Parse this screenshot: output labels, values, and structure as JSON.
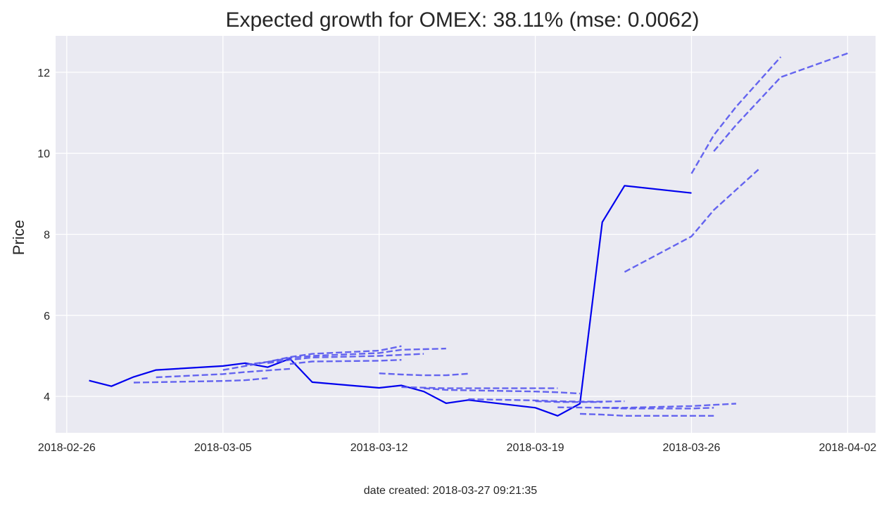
{
  "chart_data": {
    "type": "line",
    "title": "Expected growth for OMEX: 38.11% (mse: 0.0062)",
    "xlabel": "",
    "ylabel": "Price",
    "footer": "date created: 2018-03-27 09:21:35",
    "xlim": [
      "2018-02-25T12:00",
      "2018-04-03T06:00"
    ],
    "ylim": [
      3.1,
      12.9
    ],
    "x_ticks": [
      "2018-02-26",
      "2018-03-05",
      "2018-03-12",
      "2018-03-19",
      "2018-03-26",
      "2018-04-02"
    ],
    "y_ticks": [
      4,
      6,
      8,
      10,
      12
    ],
    "grid": true,
    "background": "#eaeaf2",
    "grid_color": "#ffffff",
    "series": [
      {
        "style": "solid",
        "color": "#0000ee",
        "points": [
          [
            "2018-02-27",
            4.39
          ],
          [
            "2018-02-28",
            4.25
          ],
          [
            "2018-03-01",
            4.48
          ],
          [
            "2018-03-02",
            4.65
          ],
          [
            "2018-03-05",
            4.75
          ],
          [
            "2018-03-06",
            4.82
          ],
          [
            "2018-03-07",
            4.72
          ],
          [
            "2018-03-08",
            4.93
          ],
          [
            "2018-03-09",
            4.35
          ],
          [
            "2018-03-12",
            4.21
          ],
          [
            "2018-03-13",
            4.27
          ],
          [
            "2018-03-14",
            4.12
          ],
          [
            "2018-03-15",
            3.83
          ],
          [
            "2018-03-16",
            3.91
          ],
          [
            "2018-03-19",
            3.72
          ],
          [
            "2018-03-20",
            3.52
          ],
          [
            "2018-03-21",
            3.82
          ],
          [
            "2018-03-22",
            8.3
          ],
          [
            "2018-03-23",
            9.2
          ],
          [
            "2018-03-26",
            9.02
          ]
        ]
      },
      {
        "style": "dashed",
        "color": "#5555ee",
        "points": [
          [
            "2018-03-01",
            4.34
          ],
          [
            "2018-03-05",
            4.38
          ],
          [
            "2018-03-06",
            4.4
          ],
          [
            "2018-03-07",
            4.45
          ]
        ]
      },
      {
        "style": "dashed",
        "color": "#5555ee",
        "points": [
          [
            "2018-03-02",
            4.47
          ],
          [
            "2018-03-05",
            4.55
          ],
          [
            "2018-03-06",
            4.6
          ],
          [
            "2018-03-08",
            4.68
          ]
        ]
      },
      {
        "style": "dashed",
        "color": "#5555ee",
        "points": [
          [
            "2018-03-05",
            4.65
          ],
          [
            "2018-03-06",
            4.75
          ],
          [
            "2018-03-08",
            4.95
          ],
          [
            "2018-03-09",
            5.0
          ],
          [
            "2018-03-12",
            5.07
          ],
          [
            "2018-03-13",
            5.15
          ],
          [
            "2018-03-15",
            5.18
          ]
        ]
      },
      {
        "style": "dashed",
        "color": "#5555ee",
        "points": [
          [
            "2018-03-06",
            4.78
          ],
          [
            "2018-03-07",
            4.85
          ],
          [
            "2018-03-08",
            4.97
          ],
          [
            "2018-03-09",
            5.05
          ],
          [
            "2018-03-12",
            5.13
          ],
          [
            "2018-03-13",
            5.24
          ]
        ]
      },
      {
        "style": "dashed",
        "color": "#5555ee",
        "points": [
          [
            "2018-03-07",
            4.82
          ],
          [
            "2018-03-08",
            4.9
          ],
          [
            "2018-03-09",
            4.96
          ],
          [
            "2018-03-12",
            5.0
          ],
          [
            "2018-03-14",
            5.05
          ]
        ]
      },
      {
        "style": "dashed",
        "color": "#5555ee",
        "points": [
          [
            "2018-03-08",
            4.8
          ],
          [
            "2018-03-09",
            4.86
          ],
          [
            "2018-03-12",
            4.88
          ],
          [
            "2018-03-13",
            4.9
          ]
        ]
      },
      {
        "style": "dashed",
        "color": "#5555ee",
        "points": [
          [
            "2018-03-12",
            4.57
          ],
          [
            "2018-03-13",
            4.54
          ],
          [
            "2018-03-14",
            4.52
          ],
          [
            "2018-03-15",
            4.52
          ],
          [
            "2018-03-16",
            4.56
          ]
        ]
      },
      {
        "style": "dashed",
        "color": "#5555ee",
        "points": [
          [
            "2018-03-13",
            4.23
          ],
          [
            "2018-03-15",
            4.2
          ],
          [
            "2018-03-16",
            4.2
          ],
          [
            "2018-03-19",
            4.2
          ],
          [
            "2018-03-20",
            4.2
          ]
        ]
      },
      {
        "style": "dashed",
        "color": "#5555ee",
        "points": [
          [
            "2018-03-14",
            4.2
          ],
          [
            "2018-03-15",
            4.16
          ],
          [
            "2018-03-16",
            4.15
          ],
          [
            "2018-03-19",
            4.12
          ],
          [
            "2018-03-20",
            4.1
          ],
          [
            "2018-03-21",
            4.07
          ]
        ]
      },
      {
        "style": "dashed",
        "color": "#5555ee",
        "points": [
          [
            "2018-03-16",
            3.93
          ],
          [
            "2018-03-19",
            3.9
          ],
          [
            "2018-03-20",
            3.88
          ],
          [
            "2018-03-21",
            3.87
          ],
          [
            "2018-03-22",
            3.87
          ],
          [
            "2018-03-23",
            3.88
          ]
        ]
      },
      {
        "style": "dashed",
        "color": "#5555ee",
        "points": [
          [
            "2018-03-19",
            3.88
          ],
          [
            "2018-03-20",
            3.86
          ],
          [
            "2018-03-21",
            3.86
          ],
          [
            "2018-03-22",
            3.86
          ]
        ]
      },
      {
        "style": "dashed",
        "color": "#5555ee",
        "points": [
          [
            "2018-03-20",
            3.73
          ],
          [
            "2018-03-22",
            3.72
          ],
          [
            "2018-03-23",
            3.72
          ],
          [
            "2018-03-26",
            3.76
          ],
          [
            "2018-03-28",
            3.82
          ]
        ]
      },
      {
        "style": "dashed",
        "color": "#5555ee",
        "points": [
          [
            "2018-03-22",
            3.72
          ],
          [
            "2018-03-23",
            3.7
          ],
          [
            "2018-03-26",
            3.7
          ],
          [
            "2018-03-27",
            3.72
          ]
        ]
      },
      {
        "style": "dashed",
        "color": "#5555ee",
        "points": [
          [
            "2018-03-21",
            3.57
          ],
          [
            "2018-03-22",
            3.55
          ],
          [
            "2018-03-23",
            3.52
          ],
          [
            "2018-03-26",
            3.52
          ],
          [
            "2018-03-27",
            3.52
          ]
        ]
      },
      {
        "style": "dashed",
        "color": "#5555ee",
        "points": [
          [
            "2018-03-23",
            7.07
          ],
          [
            "2018-03-26",
            7.95
          ],
          [
            "2018-03-27",
            8.6
          ],
          [
            "2018-03-29",
            9.6
          ]
        ]
      },
      {
        "style": "dashed",
        "color": "#5555ee",
        "points": [
          [
            "2018-03-26",
            9.5
          ],
          [
            "2018-03-27",
            10.45
          ],
          [
            "2018-03-28",
            11.15
          ],
          [
            "2018-03-30",
            12.38
          ]
        ]
      },
      {
        "style": "dashed",
        "color": "#5555ee",
        "points": [
          [
            "2018-03-27",
            10.05
          ],
          [
            "2018-03-28",
            10.7
          ],
          [
            "2018-03-30",
            11.88
          ],
          [
            "2018-04-02",
            12.47
          ]
        ]
      }
    ]
  }
}
